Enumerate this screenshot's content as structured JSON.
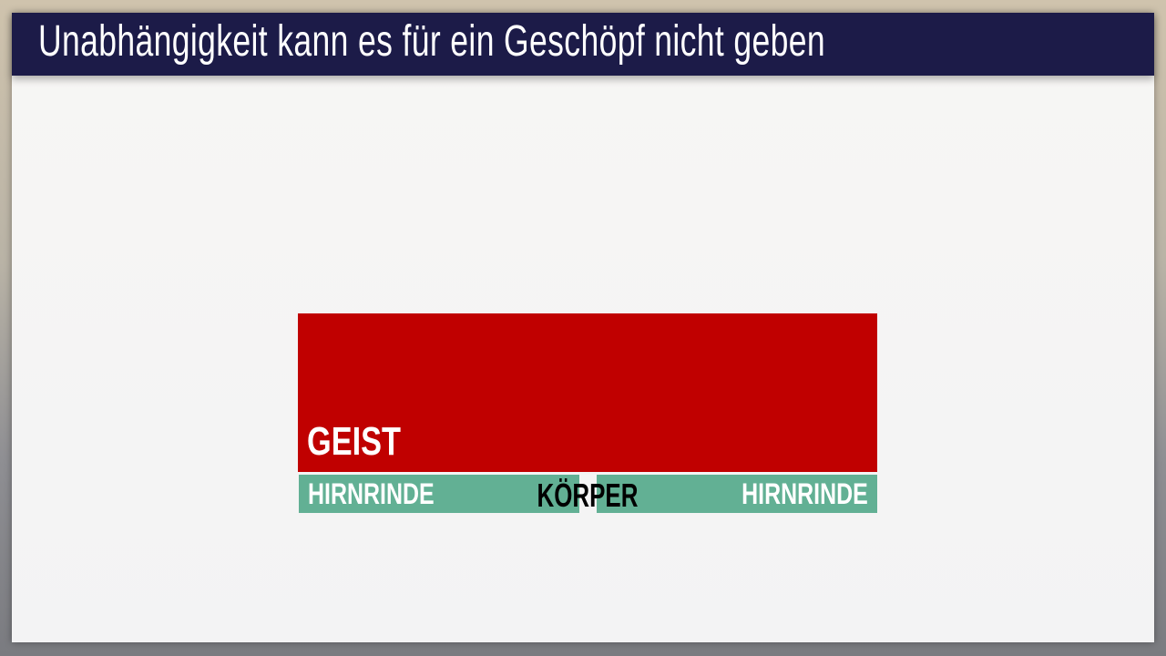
{
  "header": {
    "title": "Unabhängigkeit kann es für ein Geschöpf nicht geben"
  },
  "diagram": {
    "geist": "GEIST",
    "left_cortex": "HIRNRINDE",
    "body": "KÖRPER",
    "right_cortex": "HIRNRINDE",
    "colors": {
      "geist": "#c00000",
      "cortex": "#62b094",
      "header": "#1c1b48"
    }
  }
}
